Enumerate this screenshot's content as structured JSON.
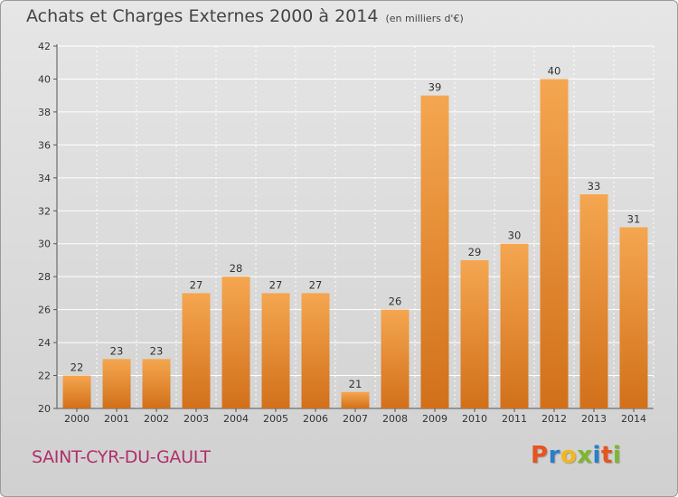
{
  "chart_data": {
    "type": "bar",
    "title": "Achats et Charges Externes 2000 à 2014",
    "subtitle": "(en milliers d'€)",
    "categories": [
      "2000",
      "2001",
      "2002",
      "2003",
      "2004",
      "2005",
      "2006",
      "2007",
      "2008",
      "2009",
      "2010",
      "2011",
      "2012",
      "2013",
      "2014"
    ],
    "values": [
      22,
      23,
      23,
      27,
      28,
      27,
      27,
      21,
      26,
      39,
      29,
      30,
      40,
      33,
      31
    ],
    "ylim": [
      20,
      42
    ],
    "yticks": [
      20,
      22,
      24,
      26,
      28,
      30,
      32,
      34,
      36,
      38,
      40,
      42
    ],
    "xlabel": "",
    "ylabel": "",
    "grid": true,
    "colors": {
      "bar_top": "#f5a650",
      "bar_bottom": "#d2701a",
      "grid": "#ffffff"
    }
  },
  "footer": {
    "commune": "SAINT-CYR-DU-GAULT",
    "logo": "Proxiti",
    "logo_colors": [
      "#e8531f",
      "#2a7fc9",
      "#f2b81a",
      "#7cb82f",
      "#2a7fc9",
      "#e8531f",
      "#7cb82f"
    ]
  }
}
